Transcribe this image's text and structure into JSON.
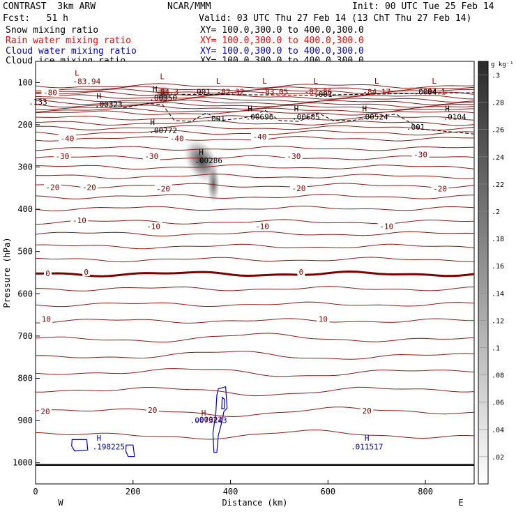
{
  "header": {
    "model": "CONTRAST  3km ARW",
    "org": "NCAR/MMM",
    "init": "Init: 00 UTC Tue 25 Feb 14",
    "fcst": "Fcst:   51 h",
    "valid": "Valid: 03 UTC Thu 27 Feb 14 (13 ChT Thu 27 Feb 14)"
  },
  "fields": [
    {
      "name": "Snow mixing ratio",
      "xy": "XY= 100.0,300.0 to 400.0,300.0",
      "color": "#000000"
    },
    {
      "name": "Rain water mixing ratio",
      "xy": "XY= 100.0,300.0 to 400.0,300.0",
      "color": "#ff0000"
    },
    {
      "name": "Cloud water mixing ratio",
      "xy": "XY= 100.0,300.0 to 400.0,300.0",
      "color": "#0000cc"
    },
    {
      "name": "Cloud ice mixing ratio",
      "xy": "XY= 100.0,300.0 to 400.0,300.0",
      "color": "#000000"
    }
  ],
  "chart_data": {
    "type": "contour-cross-section",
    "xlabel": "Distance (km)",
    "ylabel": "Pressure (hPa)",
    "xlim": [
      0,
      900
    ],
    "ylim": [
      1050,
      50
    ],
    "x_ticks": [
      0,
      200,
      400,
      600,
      800
    ],
    "y_ticks": [
      100,
      200,
      300,
      400,
      500,
      600,
      700,
      800,
      900,
      1000
    ],
    "x_end_labels": {
      "left": "W",
      "right": "E"
    },
    "colorbar": {
      "unit": "g kg⁻¹",
      "levels": [
        ".02",
        ".04",
        ".06",
        ".08",
        ".1",
        ".12",
        ".14",
        ".16",
        ".18",
        ".2",
        ".22",
        ".24",
        ".26",
        ".28",
        ".3"
      ]
    },
    "temperature_contour_labels": [
      {
        "text": "-80",
        "x": 30,
        "p": 128
      },
      {
        "text": "-40",
        "x": 65,
        "p": 237
      },
      {
        "text": "-40",
        "x": 290,
        "p": 237
      },
      {
        "text": "-40",
        "x": 460,
        "p": 233
      },
      {
        "text": "-30",
        "x": 55,
        "p": 279
      },
      {
        "text": "-30",
        "x": 238,
        "p": 279
      },
      {
        "text": "-30",
        "x": 530,
        "p": 279
      },
      {
        "text": "-30",
        "x": 790,
        "p": 275
      },
      {
        "text": "-20",
        "x": 35,
        "p": 353
      },
      {
        "text": "-20",
        "x": 110,
        "p": 353
      },
      {
        "text": "-20",
        "x": 262,
        "p": 356
      },
      {
        "text": "-20",
        "x": 540,
        "p": 355
      },
      {
        "text": "-20",
        "x": 830,
        "p": 356
      },
      {
        "text": "-10",
        "x": 90,
        "p": 431
      },
      {
        "text": "-10",
        "x": 242,
        "p": 445
      },
      {
        "text": "-10",
        "x": 465,
        "p": 445
      },
      {
        "text": "-10",
        "x": 720,
        "p": 445
      },
      {
        "text": "0",
        "x": 25,
        "p": 557
      },
      {
        "text": "0",
        "x": 104,
        "p": 553
      },
      {
        "text": "0",
        "x": 545,
        "p": 553
      },
      {
        "text": "10",
        "x": 22,
        "p": 665
      },
      {
        "text": "10",
        "x": 590,
        "p": 665
      },
      {
        "text": "20",
        "x": 20,
        "p": 883
      },
      {
        "text": "20",
        "x": 240,
        "p": 880
      },
      {
        "text": "20",
        "x": 680,
        "p": 882
      }
    ],
    "minmax_labels": [
      {
        "text": "L",
        "x": 85,
        "p": 84,
        "color": "#880000"
      },
      {
        "text": "-83.94",
        "x": 105,
        "p": 104,
        "color": "#880000"
      },
      {
        "text": "L",
        "x": 260,
        "p": 92,
        "color": "#880000"
      },
      {
        "text": "-84.3",
        "x": 270,
        "p": 128,
        "color": "#880000"
      },
      {
        "text": "L",
        "x": 375,
        "p": 103,
        "color": "#880000"
      },
      {
        "text": "-82.32",
        "x": 400,
        "p": 128,
        "color": "#880000"
      },
      {
        "text": "L",
        "x": 470,
        "p": 103,
        "color": "#880000"
      },
      {
        "text": "-83.05",
        "x": 490,
        "p": 128,
        "color": "#880000"
      },
      {
        "text": "L",
        "x": 575,
        "p": 103,
        "color": "#880000"
      },
      {
        "text": "-82.86",
        "x": 580,
        "p": 128,
        "color": "#880000"
      },
      {
        "text": "L",
        "x": 700,
        "p": 103,
        "color": "#880000"
      },
      {
        "text": "-84.17",
        "x": 700,
        "p": 128,
        "color": "#880000"
      },
      {
        "text": "L",
        "x": 818,
        "p": 103,
        "color": "#880000"
      },
      {
        "text": "-84.1",
        "x": 818,
        "p": 128,
        "color": "#880000"
      },
      {
        "text": "H",
        "x": 130,
        "p": 138,
        "color": "#000000"
      },
      {
        "text": ".00323",
        "x": 150,
        "p": 158,
        "color": "#000000"
      },
      {
        "text": "H",
        "x": 245,
        "p": 122,
        "color": "#000000"
      },
      {
        "text": ".00350",
        "x": 262,
        "p": 142,
        "color": "#000000"
      },
      {
        "text": ".001",
        "x": 340,
        "p": 128,
        "color": "#000000"
      },
      {
        "text": ".001",
        "x": 590,
        "p": 134,
        "color": "#000000"
      },
      {
        "text": ".0004",
        "x": 800,
        "p": 128,
        "color": "#000000"
      },
      {
        "text": ".133",
        "x": 5,
        "p": 152,
        "color": "#000000"
      },
      {
        "text": ".001",
        "x": 370,
        "p": 192,
        "color": "#000000"
      },
      {
        "text": "H",
        "x": 440,
        "p": 168,
        "color": "#000000"
      },
      {
        "text": ".00696",
        "x": 460,
        "p": 188,
        "color": "#000000"
      },
      {
        "text": "H",
        "x": 535,
        "p": 168,
        "color": "#000000"
      },
      {
        "text": ".00685",
        "x": 555,
        "p": 188,
        "color": "#000000"
      },
      {
        "text": "H",
        "x": 675,
        "p": 168,
        "color": "#000000"
      },
      {
        "text": ".00524",
        "x": 695,
        "p": 188,
        "color": "#000000"
      },
      {
        "text": "H",
        "x": 845,
        "p": 168,
        "color": "#000000"
      },
      {
        "text": ".0104",
        "x": 860,
        "p": 188,
        "color": "#000000"
      },
      {
        "text": ".001",
        "x": 780,
        "p": 212,
        "color": "#000000"
      },
      {
        "text": "H",
        "x": 240,
        "p": 200,
        "color": "#000000"
      },
      {
        "text": ".00772",
        "x": 262,
        "p": 220,
        "color": "#000000"
      },
      {
        "text": "H",
        "x": 340,
        "p": 271,
        "color": "#000000"
      },
      {
        "text": ".00286",
        "x": 355,
        "p": 291,
        "color": "#000000"
      },
      {
        "text": "H",
        "x": 345,
        "p": 888,
        "color": "#880000"
      },
      {
        "text": ".00022",
        "x": 355,
        "p": 904,
        "color": "#880000"
      },
      {
        "text": ".0073243",
        "x": 355,
        "p": 906,
        "color": "#0000cc"
      },
      {
        "text": "H",
        "x": 130,
        "p": 948,
        "color": "#0000cc"
      },
      {
        "text": ".198225",
        "x": 150,
        "p": 968,
        "color": "#0000cc"
      },
      {
        "text": "H",
        "x": 680,
        "p": 948,
        "color": "#0000cc"
      },
      {
        "text": ".011517",
        "x": 680,
        "p": 968,
        "color": "#0000cc"
      }
    ]
  }
}
